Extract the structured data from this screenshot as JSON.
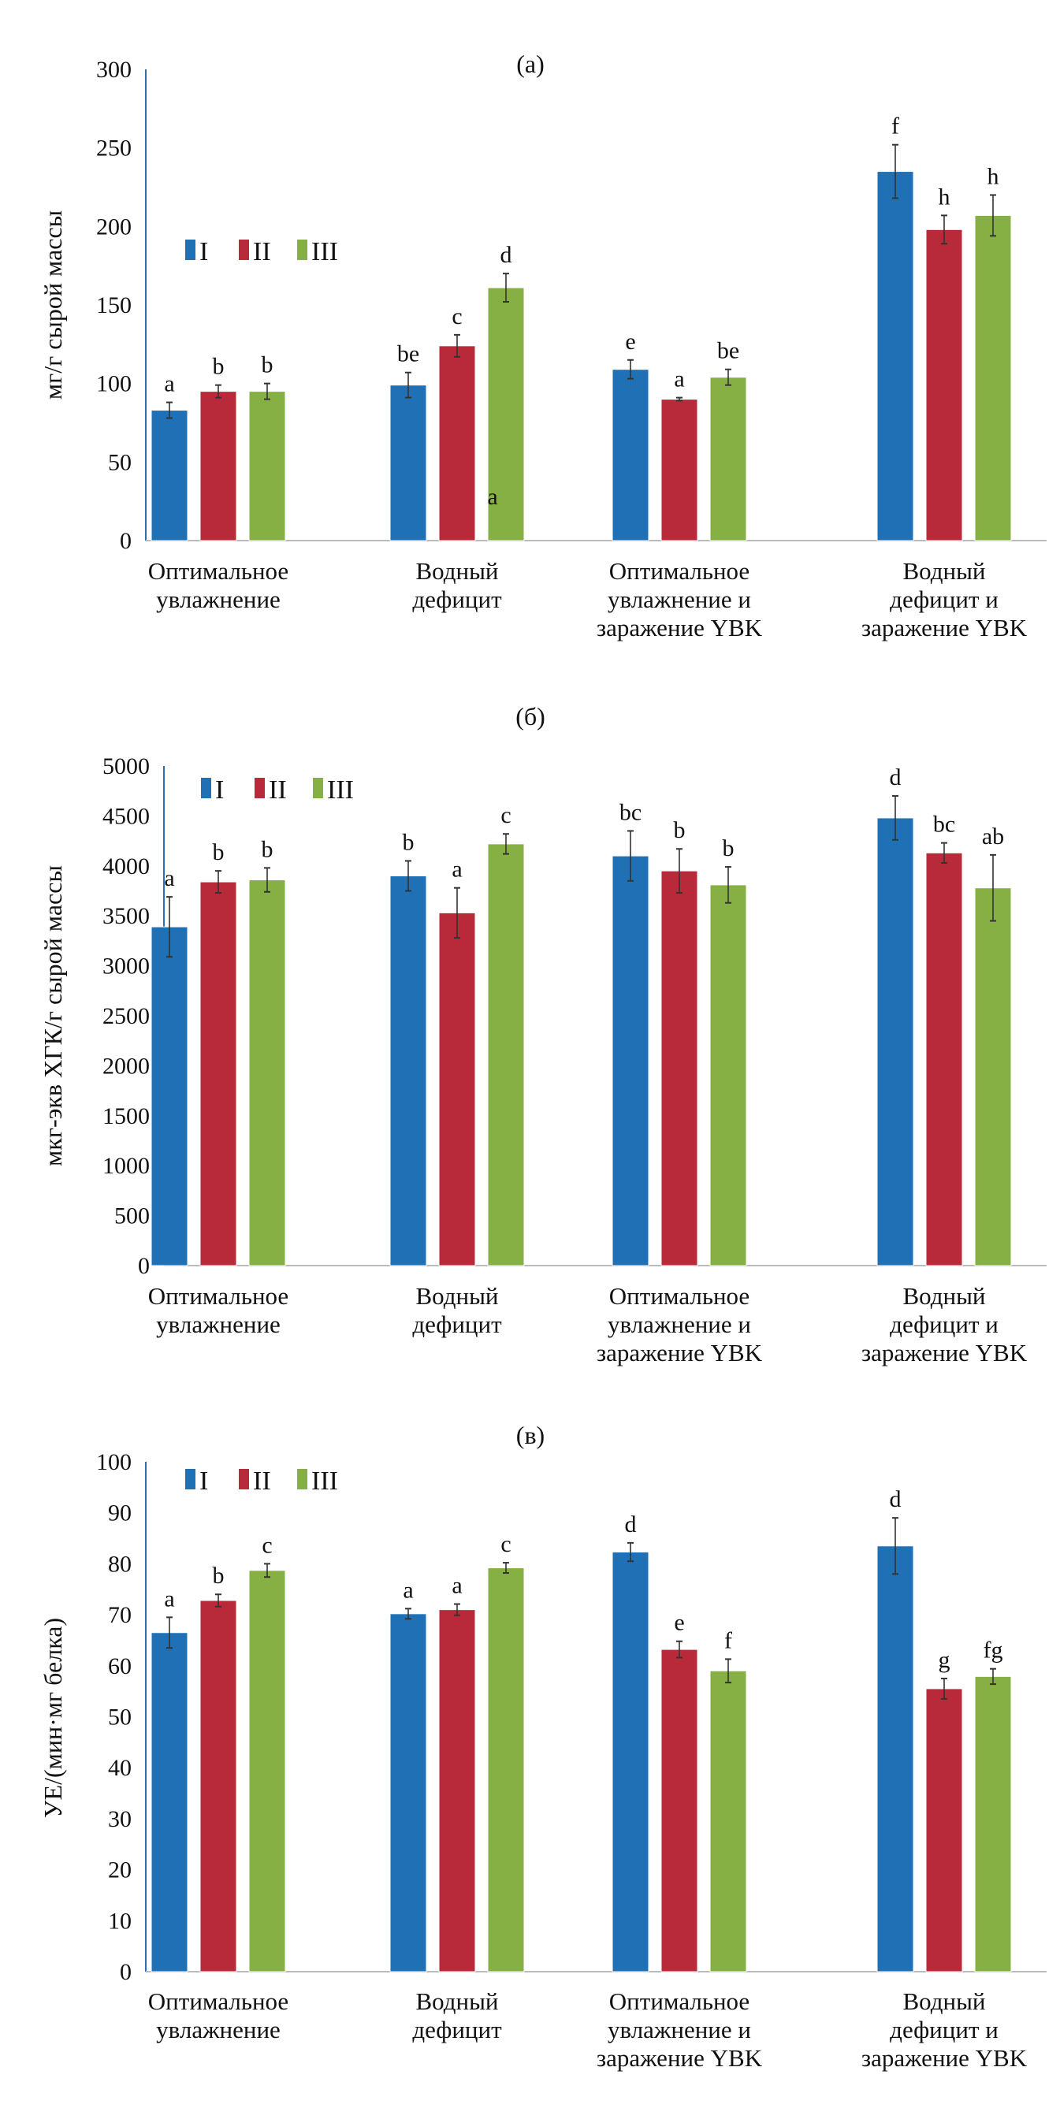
{
  "colors": {
    "I": "#1f70b4",
    "II": "#b82a3a",
    "III": "#86b043",
    "axis": "#2a6fb0",
    "error": "#333333"
  },
  "chart_data": [
    {
      "type": "bar",
      "title": "(а)",
      "ylabel": "мг/г сырой массы",
      "ylim": [
        0,
        300
      ],
      "yticks": [
        "0",
        "50",
        "100",
        "150",
        "200",
        "250",
        "300"
      ],
      "categories": [
        [
          "Оптимальное",
          "увлажнение"
        ],
        [
          "Водный",
          "дефицит"
        ],
        [
          "Оптимальное",
          "увлажнение и",
          "заражение YBK"
        ],
        [
          "Водный",
          "дефицит и",
          "заражение YBK"
        ]
      ],
      "legend": {
        "position": "upper-left",
        "entries": [
          "I",
          "II",
          "III"
        ]
      },
      "series": [
        {
          "name": "I",
          "values": [
            83,
            99,
            109,
            235
          ],
          "errors": [
            5,
            8,
            6,
            17
          ],
          "letters": [
            "a",
            "be",
            "e",
            "f"
          ]
        },
        {
          "name": "II",
          "values": [
            95,
            124,
            90,
            198
          ],
          "errors": [
            4,
            7,
            1,
            9
          ],
          "letters": [
            "b",
            "c",
            "a",
            "h"
          ]
        },
        {
          "name": "III",
          "values": [
            95,
            161,
            104,
            207
          ],
          "errors": [
            5,
            9,
            5,
            13
          ],
          "letters": [
            "b",
            "d",
            "be",
            "h"
          ]
        }
      ],
      "annotations": [
        "a"
      ]
    },
    {
      "type": "bar",
      "title": "(б)",
      "ylabel": "мкг-экв ХГК/г сырой массы",
      "ylim": [
        0,
        5000
      ],
      "yticks": [
        "0",
        "500",
        "1000",
        "1500",
        "2000",
        "2500",
        "3000",
        "3500",
        "4000",
        "4500",
        "5000"
      ],
      "categories": [
        [
          "Оптимальное",
          "увлажнение"
        ],
        [
          "Водный",
          "дефицит"
        ],
        [
          "Оптимальное",
          "увлажнение и",
          "заражение YBK"
        ],
        [
          "Водный",
          "дефицит и",
          "заражение YBK"
        ]
      ],
      "legend": {
        "position": "upper-left",
        "entries": [
          "I",
          "II",
          "III"
        ]
      },
      "series": [
        {
          "name": "I",
          "values": [
            3390,
            3900,
            4100,
            4480
          ],
          "errors": [
            300,
            150,
            250,
            220
          ],
          "letters": [
            "a",
            "b",
            "bc",
            "d"
          ]
        },
        {
          "name": "II",
          "values": [
            3840,
            3530,
            3950,
            4130
          ],
          "errors": [
            110,
            250,
            220,
            100
          ],
          "letters": [
            "b",
            "a",
            "b",
            "bc"
          ]
        },
        {
          "name": "III",
          "values": [
            3860,
            4220,
            3810,
            3780
          ],
          "errors": [
            120,
            100,
            180,
            330
          ],
          "letters": [
            "b",
            "c",
            "b",
            "ab"
          ]
        }
      ]
    },
    {
      "type": "bar",
      "title": "(в)",
      "ylabel": "УЕ/(мин·мг белка)",
      "ylim": [
        0,
        100
      ],
      "yticks": [
        "0",
        "10",
        "20",
        "30",
        "40",
        "50",
        "60",
        "70",
        "80",
        "90",
        "100"
      ],
      "categories": [
        [
          "Оптимальное",
          "увлажнение"
        ],
        [
          "Водный",
          "дефицит"
        ],
        [
          "Оптимальное",
          "увлажнение и",
          "заражение YBK"
        ],
        [
          "Водный",
          "дефицит и",
          "заражение YBK"
        ]
      ],
      "legend": {
        "position": "upper-left",
        "entries": [
          "I",
          "II",
          "III"
        ]
      },
      "series": [
        {
          "name": "I",
          "values": [
            66.5,
            70.2,
            82.3,
            83.5
          ],
          "errors": [
            3,
            1,
            1.8,
            5.5
          ],
          "letters": [
            "a",
            "a",
            "d",
            "d"
          ]
        },
        {
          "name": "II",
          "values": [
            72.8,
            71.0,
            63.2,
            55.5
          ],
          "errors": [
            1.2,
            1.1,
            1.6,
            2
          ],
          "letters": [
            "b",
            "a",
            "e",
            "g"
          ]
        },
        {
          "name": "III",
          "values": [
            78.7,
            79.2,
            59.0,
            57.9
          ],
          "errors": [
            1.3,
            1,
            2.3,
            1.5
          ],
          "letters": [
            "c",
            "c",
            "f",
            "fg"
          ]
        }
      ]
    }
  ]
}
